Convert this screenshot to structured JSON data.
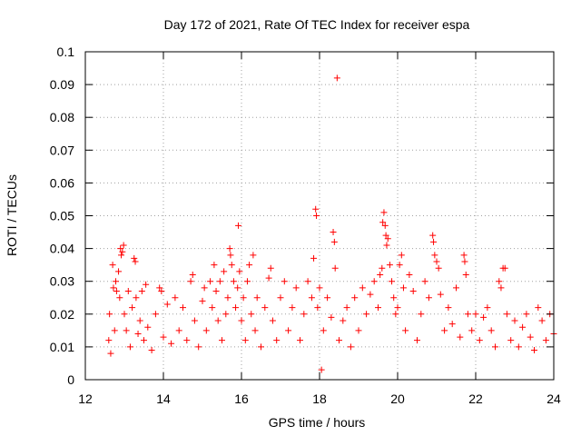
{
  "chart_data": {
    "type": "scatter",
    "title": "Day 172 of 2021, Rate Of TEC Index for receiver espa",
    "xlabel": "GPS time / hours",
    "ylabel": "ROTI / TECUs",
    "xlim": [
      12,
      24
    ],
    "ylim": [
      0,
      0.1
    ],
    "xticks": [
      12,
      14,
      16,
      18,
      20,
      22,
      24
    ],
    "xtick_labels": [
      "12",
      "14",
      "16",
      "18",
      "20",
      "22",
      "24"
    ],
    "yticks": [
      0,
      0.01,
      0.02,
      0.03,
      0.04,
      0.05,
      0.06,
      0.07,
      0.08,
      0.09,
      0.1
    ],
    "ytick_labels": [
      "0",
      "0.01",
      "0.02",
      "0.03",
      "0.04",
      "0.05",
      "0.06",
      "0.07",
      "0.08",
      "0.09",
      "0.1"
    ],
    "grid": true,
    "marker": "+",
    "color": "#ff0000",
    "series": [
      {
        "name": "ROTI",
        "points": [
          [
            12.6,
            0.012
          ],
          [
            12.62,
            0.02
          ],
          [
            12.65,
            0.008
          ],
          [
            12.7,
            0.035
          ],
          [
            12.72,
            0.028
          ],
          [
            12.75,
            0.015
          ],
          [
            12.78,
            0.03
          ],
          [
            12.8,
            0.027
          ],
          [
            12.85,
            0.033
          ],
          [
            12.88,
            0.025
          ],
          [
            12.9,
            0.04
          ],
          [
            12.92,
            0.038
          ],
          [
            12.95,
            0.039
          ],
          [
            12.98,
            0.041
          ],
          [
            13.0,
            0.02
          ],
          [
            13.05,
            0.015
          ],
          [
            13.1,
            0.027
          ],
          [
            13.15,
            0.01
          ],
          [
            13.2,
            0.022
          ],
          [
            13.25,
            0.037
          ],
          [
            13.28,
            0.036
          ],
          [
            13.3,
            0.025
          ],
          [
            13.35,
            0.014
          ],
          [
            13.4,
            0.018
          ],
          [
            13.45,
            0.027
          ],
          [
            13.5,
            0.012
          ],
          [
            13.55,
            0.029
          ],
          [
            13.6,
            0.016
          ],
          [
            13.7,
            0.009
          ],
          [
            13.8,
            0.02
          ],
          [
            13.9,
            0.028
          ],
          [
            13.95,
            0.027
          ],
          [
            14.0,
            0.013
          ],
          [
            14.1,
            0.023
          ],
          [
            14.2,
            0.011
          ],
          [
            14.3,
            0.025
          ],
          [
            14.4,
            0.015
          ],
          [
            14.5,
            0.022
          ],
          [
            14.6,
            0.012
          ],
          [
            14.7,
            0.03
          ],
          [
            14.75,
            0.032
          ],
          [
            14.8,
            0.018
          ],
          [
            14.9,
            0.01
          ],
          [
            15.0,
            0.024
          ],
          [
            15.05,
            0.028
          ],
          [
            15.1,
            0.015
          ],
          [
            15.2,
            0.03
          ],
          [
            15.25,
            0.022
          ],
          [
            15.3,
            0.035
          ],
          [
            15.35,
            0.027
          ],
          [
            15.4,
            0.018
          ],
          [
            15.45,
            0.03
          ],
          [
            15.5,
            0.012
          ],
          [
            15.55,
            0.033
          ],
          [
            15.6,
            0.02
          ],
          [
            15.65,
            0.025
          ],
          [
            15.7,
            0.04
          ],
          [
            15.72,
            0.038
          ],
          [
            15.75,
            0.035
          ],
          [
            15.8,
            0.03
          ],
          [
            15.85,
            0.022
          ],
          [
            15.9,
            0.028
          ],
          [
            15.92,
            0.047
          ],
          [
            15.95,
            0.033
          ],
          [
            16.0,
            0.018
          ],
          [
            16.05,
            0.025
          ],
          [
            16.1,
            0.012
          ],
          [
            16.15,
            0.03
          ],
          [
            16.2,
            0.035
          ],
          [
            16.25,
            0.02
          ],
          [
            16.3,
            0.038
          ],
          [
            16.35,
            0.015
          ],
          [
            16.4,
            0.025
          ],
          [
            16.5,
            0.01
          ],
          [
            16.6,
            0.022
          ],
          [
            16.7,
            0.031
          ],
          [
            16.75,
            0.034
          ],
          [
            16.8,
            0.018
          ],
          [
            16.9,
            0.012
          ],
          [
            17.0,
            0.025
          ],
          [
            17.1,
            0.03
          ],
          [
            17.2,
            0.015
          ],
          [
            17.3,
            0.022
          ],
          [
            17.4,
            0.028
          ],
          [
            17.5,
            0.012
          ],
          [
            17.6,
            0.02
          ],
          [
            17.7,
            0.03
          ],
          [
            17.8,
            0.025
          ],
          [
            17.85,
            0.037
          ],
          [
            17.9,
            0.052
          ],
          [
            17.92,
            0.05
          ],
          [
            17.95,
            0.022
          ],
          [
            18.0,
            0.028
          ],
          [
            18.05,
            0.003
          ],
          [
            18.1,
            0.015
          ],
          [
            18.2,
            0.025
          ],
          [
            18.3,
            0.019
          ],
          [
            18.35,
            0.045
          ],
          [
            18.38,
            0.042
          ],
          [
            18.4,
            0.034
          ],
          [
            18.45,
            0.092
          ],
          [
            18.5,
            0.012
          ],
          [
            18.6,
            0.018
          ],
          [
            18.7,
            0.022
          ],
          [
            18.8,
            0.01
          ],
          [
            18.9,
            0.025
          ],
          [
            19.0,
            0.015
          ],
          [
            19.1,
            0.028
          ],
          [
            19.2,
            0.02
          ],
          [
            19.3,
            0.026
          ],
          [
            19.4,
            0.03
          ],
          [
            19.5,
            0.022
          ],
          [
            19.55,
            0.032
          ],
          [
            19.6,
            0.034
          ],
          [
            19.62,
            0.048
          ],
          [
            19.65,
            0.051
          ],
          [
            19.68,
            0.047
          ],
          [
            19.7,
            0.044
          ],
          [
            19.72,
            0.041
          ],
          [
            19.75,
            0.043
          ],
          [
            19.8,
            0.035
          ],
          [
            19.85,
            0.03
          ],
          [
            19.9,
            0.025
          ],
          [
            19.95,
            0.02
          ],
          [
            20.0,
            0.022
          ],
          [
            20.05,
            0.035
          ],
          [
            20.1,
            0.038
          ],
          [
            20.15,
            0.028
          ],
          [
            20.2,
            0.015
          ],
          [
            20.3,
            0.032
          ],
          [
            20.4,
            0.027
          ],
          [
            20.5,
            0.012
          ],
          [
            20.6,
            0.02
          ],
          [
            20.7,
            0.03
          ],
          [
            20.8,
            0.025
          ],
          [
            20.9,
            0.044
          ],
          [
            20.92,
            0.042
          ],
          [
            20.95,
            0.038
          ],
          [
            21.0,
            0.036
          ],
          [
            21.05,
            0.034
          ],
          [
            21.1,
            0.026
          ],
          [
            21.2,
            0.015
          ],
          [
            21.3,
            0.022
          ],
          [
            21.4,
            0.017
          ],
          [
            21.5,
            0.028
          ],
          [
            21.6,
            0.013
          ],
          [
            21.7,
            0.038
          ],
          [
            21.72,
            0.036
          ],
          [
            21.75,
            0.032
          ],
          [
            21.8,
            0.02
          ],
          [
            21.9,
            0.015
          ],
          [
            22.0,
            0.02
          ],
          [
            22.1,
            0.012
          ],
          [
            22.2,
            0.019
          ],
          [
            22.3,
            0.022
          ],
          [
            22.4,
            0.015
          ],
          [
            22.5,
            0.01
          ],
          [
            22.6,
            0.03
          ],
          [
            22.65,
            0.028
          ],
          [
            22.7,
            0.034
          ],
          [
            22.75,
            0.034
          ],
          [
            22.8,
            0.02
          ],
          [
            22.9,
            0.012
          ],
          [
            23.0,
            0.018
          ],
          [
            23.1,
            0.01
          ],
          [
            23.2,
            0.016
          ],
          [
            23.3,
            0.02
          ],
          [
            23.4,
            0.013
          ],
          [
            23.5,
            0.009
          ],
          [
            23.6,
            0.022
          ],
          [
            23.7,
            0.018
          ],
          [
            23.8,
            0.012
          ],
          [
            23.9,
            0.02
          ],
          [
            24.0,
            0.014
          ]
        ]
      }
    ]
  }
}
